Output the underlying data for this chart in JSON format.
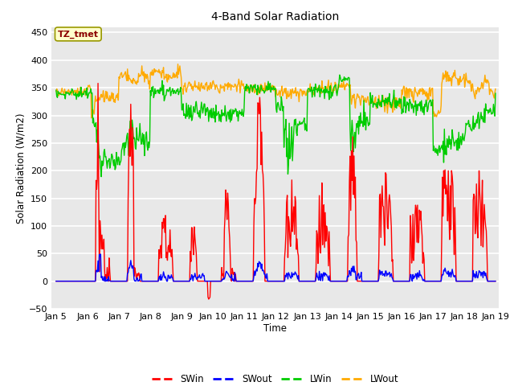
{
  "title": "4-Band Solar Radiation",
  "xlabel": "Time",
  "ylabel": "Solar Radiation (W/m2)",
  "ylim": [
    -50,
    460
  ],
  "xlim": [
    4.85,
    19.1
  ],
  "xticks": [
    5,
    6,
    7,
    8,
    9,
    10,
    11,
    12,
    13,
    14,
    15,
    16,
    17,
    18,
    19
  ],
  "xtick_labels": [
    "Jan 5",
    "Jan 6",
    "Jan 7",
    "Jan 8",
    "Jan 9",
    "Jan 10",
    "Jan 11",
    "Jan 12",
    "Jan 13",
    "Jan 14",
    "Jan 15",
    "Jan 16",
    "Jan 17",
    "Jan 18",
    "Jan 19"
  ],
  "yticks": [
    -50,
    0,
    50,
    100,
    150,
    200,
    250,
    300,
    350,
    400,
    450
  ],
  "colors": {
    "SWin": "#ff0000",
    "SWout": "#0000ff",
    "LWin": "#00cc00",
    "LWout": "#ffaa00"
  },
  "annotation_text": "TZ_tmet",
  "bg_color": "#e8e8e8",
  "grid_color": "white",
  "linewidth": 1.0
}
